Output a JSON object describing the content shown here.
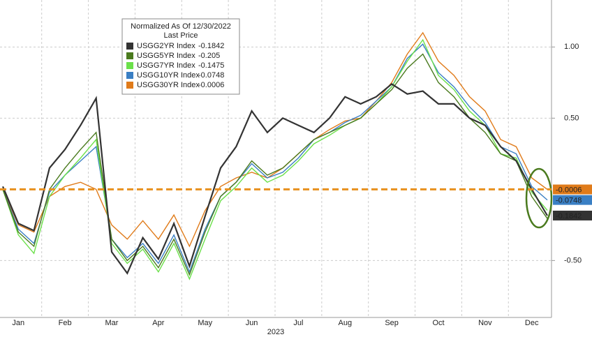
{
  "chart_data": {
    "type": "line",
    "legend_title": "Normalized As Of 12/30/2022",
    "legend_subtitle": "Last Price",
    "x_label": "2023",
    "categories": [
      null,
      "Jan",
      null,
      null,
      "Feb",
      null,
      null,
      "Mar",
      null,
      null,
      "Apr",
      null,
      null,
      "May",
      null,
      null,
      "Jun",
      null,
      null,
      "Jul",
      null,
      null,
      "Aug",
      null,
      null,
      "Sep",
      null,
      null,
      "Oct",
      null,
      null,
      "Nov",
      null,
      null,
      "Dec",
      null
    ],
    "ylim": [
      -0.9,
      1.33
    ],
    "yticks": [
      {
        "value": -0.5,
        "label": "-0.50"
      },
      {
        "value": 0.5,
        "label": "0.50"
      },
      {
        "value": 1.0,
        "label": "1.00"
      }
    ],
    "grid": true,
    "hline": {
      "value": 0,
      "color": "#e8901e"
    },
    "series": [
      {
        "name": "USGG2YR Index",
        "last_price": -0.1842,
        "end_box": true,
        "color": "#333333",
        "values": [
          0.02,
          -0.24,
          -0.29,
          0.15,
          0.28,
          0.45,
          0.64,
          -0.44,
          -0.59,
          -0.34,
          -0.49,
          -0.24,
          -0.54,
          -0.19,
          0.15,
          0.3,
          0.55,
          0.4,
          0.5,
          0.45,
          0.4,
          0.5,
          0.65,
          0.6,
          0.65,
          0.74,
          0.67,
          0.69,
          0.6,
          0.6,
          0.5,
          0.45,
          0.3,
          0.2,
          0.0,
          -0.1842
        ]
      },
      {
        "name": "USGG5YR Index",
        "last_price": -0.205,
        "end_box": false,
        "color": "#4a7a1e",
        "values": [
          0.0,
          -0.3,
          -0.4,
          0.0,
          0.15,
          0.28,
          0.4,
          -0.35,
          -0.5,
          -0.4,
          -0.55,
          -0.35,
          -0.6,
          -0.3,
          -0.05,
          0.05,
          0.2,
          0.1,
          0.15,
          0.25,
          0.35,
          0.4,
          0.45,
          0.5,
          0.6,
          0.7,
          0.85,
          0.95,
          0.75,
          0.65,
          0.5,
          0.4,
          0.25,
          0.2,
          -0.05,
          -0.205
        ]
      },
      {
        "name": "USGG7YR Index",
        "last_price": -0.1475,
        "end_box": false,
        "color": "#6be04a",
        "values": [
          0.0,
          -0.32,
          -0.45,
          -0.05,
          0.1,
          0.22,
          0.35,
          -0.38,
          -0.52,
          -0.42,
          -0.58,
          -0.38,
          -0.63,
          -0.35,
          -0.08,
          0.02,
          0.15,
          0.05,
          0.1,
          0.2,
          0.32,
          0.38,
          0.45,
          0.5,
          0.6,
          0.72,
          0.9,
          1.05,
          0.8,
          0.7,
          0.55,
          0.45,
          0.25,
          0.22,
          -0.02,
          -0.1475
        ]
      },
      {
        "name": "USGG10YR Index",
        "last_price": -0.0748,
        "end_box": true,
        "color": "#3a7fc4",
        "values": [
          0.0,
          -0.28,
          -0.38,
          -0.02,
          0.1,
          0.2,
          0.3,
          -0.35,
          -0.48,
          -0.38,
          -0.52,
          -0.32,
          -0.58,
          -0.28,
          -0.05,
          0.05,
          0.18,
          0.08,
          0.12,
          0.22,
          0.35,
          0.4,
          0.47,
          0.52,
          0.62,
          0.72,
          0.92,
          1.02,
          0.82,
          0.72,
          0.58,
          0.47,
          0.3,
          0.25,
          0.02,
          -0.0748
        ]
      },
      {
        "name": "USGG30YR Index",
        "last_price": -0.0006,
        "end_box": true,
        "color": "#e07b1a",
        "values": [
          0.0,
          -0.25,
          -0.3,
          -0.05,
          0.02,
          0.05,
          0.0,
          -0.25,
          -0.35,
          -0.22,
          -0.35,
          -0.18,
          -0.4,
          -0.15,
          0.02,
          0.08,
          0.12,
          0.08,
          0.15,
          0.25,
          0.35,
          0.42,
          0.48,
          0.5,
          0.62,
          0.75,
          0.95,
          1.1,
          0.9,
          0.8,
          0.65,
          0.55,
          0.35,
          0.3,
          0.08,
          -0.0006
        ]
      }
    ]
  }
}
